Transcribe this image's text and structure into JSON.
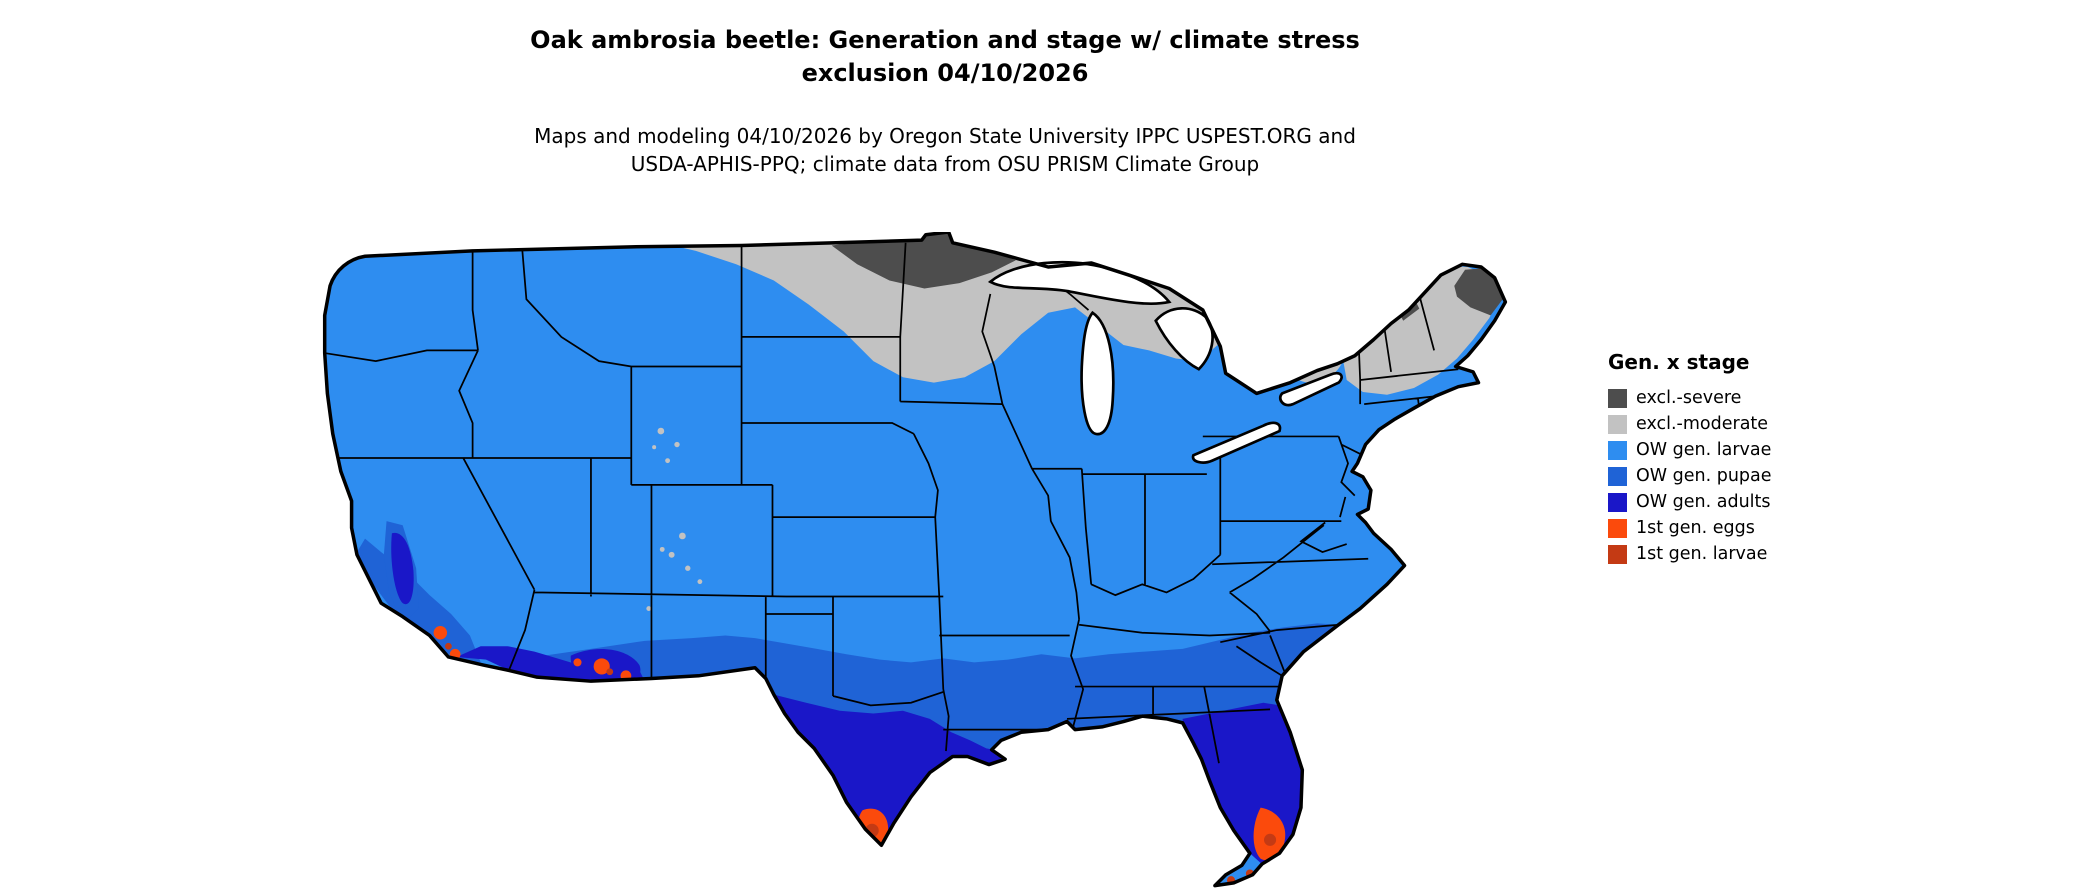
{
  "title": {
    "line1": "Oak ambrosia beetle: Generation and stage w/ climate stress",
    "line2": "exclusion 04/10/2026"
  },
  "subtitle": {
    "line1": "Maps and modeling 04/10/2026 by Oregon State University IPPC USPEST.ORG and",
    "line2": "USDA-APHIS-PPQ; climate data from OSU PRISM Climate Group"
  },
  "legend": {
    "title": "Gen. x stage",
    "items": [
      {
        "key": "excl_severe",
        "label": "excl.-severe"
      },
      {
        "key": "excl_moderate",
        "label": "excl.-moderate"
      },
      {
        "key": "ow_larvae",
        "label": "OW gen. larvae"
      },
      {
        "key": "ow_pupae",
        "label": "OW gen. pupae"
      },
      {
        "key": "ow_adults",
        "label": "OW gen. adults"
      },
      {
        "key": "gen1_eggs",
        "label": "1st gen. eggs"
      },
      {
        "key": "gen1_larvae",
        "label": "1st gen. larvae"
      }
    ]
  },
  "colors": {
    "excl_severe": "#4d4d4d",
    "excl_moderate": "#c2c2c2",
    "ow_larvae": "#2e8df0",
    "ow_pupae": "#1f63d6",
    "ow_adults": "#1a17c8",
    "gen1_eggs": "#fb4a0c",
    "gen1_larvae": "#c43a14",
    "map_border": "#000000",
    "water": "#ffffff"
  },
  "chart_data": {
    "type": "choropleth_map",
    "region": "Contiguous United States",
    "date": "04/10/2026",
    "legend_title": "Gen. x stage",
    "classes": [
      "excl.-severe",
      "excl.-moderate",
      "OW gen. larvae",
      "OW gen. pupae",
      "OW gen. adults",
      "1st gen. eggs",
      "1st gen. larvae"
    ]
  }
}
